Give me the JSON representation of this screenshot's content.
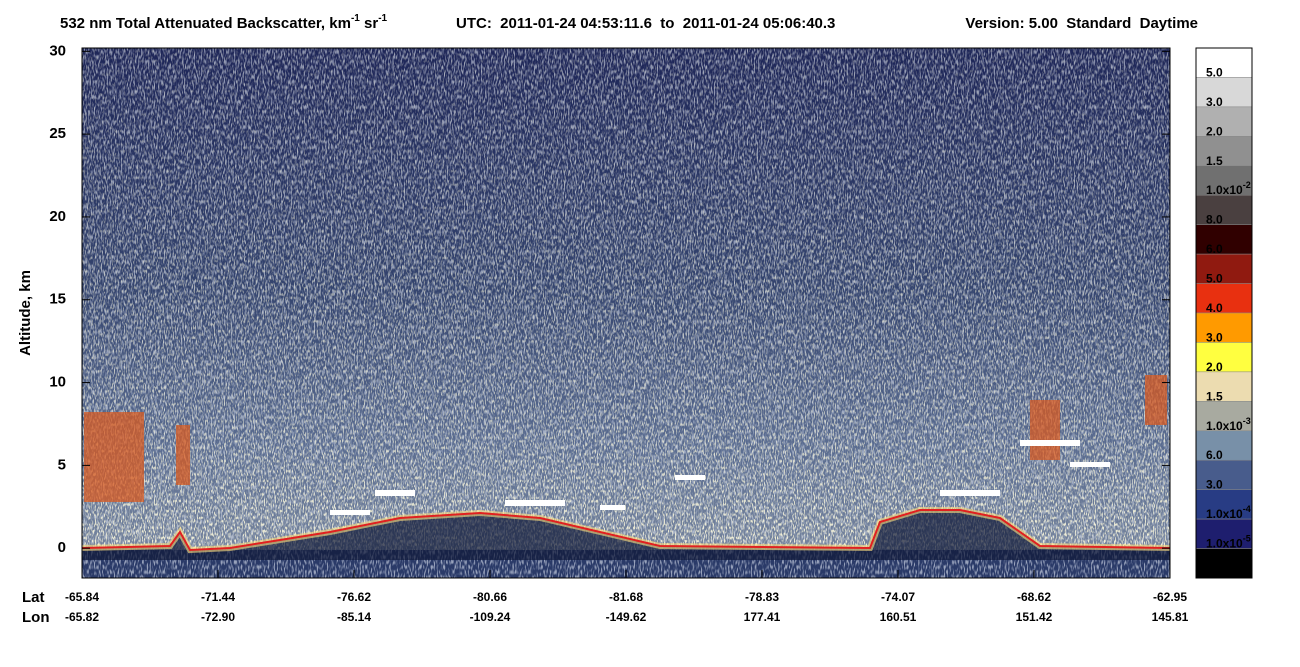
{
  "chart_data": {
    "type": "curtain",
    "title": [
      "532 nm Total Attenuated Backscatter, km",
      "-1",
      " sr",
      "-1"
    ],
    "utc": "UTC:  2011-01-24 04:53:11.6  to  2011-01-24 05:06:40.3",
    "version": "Version: 5.00  Standard  Daytime",
    "ylabel": "Altitude, km",
    "ylim": [
      -1.8,
      30.2
    ],
    "yticks": [
      0,
      5,
      10,
      15,
      20,
      25,
      30
    ],
    "xrows": [
      {
        "name": "Lat",
        "labels": [
          "-65.84",
          "-71.44",
          "-76.62",
          "-80.66",
          "-81.68",
          "-78.83",
          "-74.07",
          "-68.62",
          "-62.95"
        ]
      },
      {
        "name": "Lon",
        "labels": [
          "-65.82",
          "-72.90",
          "-85.14",
          "-109.24",
          "-149.62",
          "177.41",
          "160.51",
          "151.42",
          "145.81"
        ]
      }
    ],
    "colorbar": {
      "colors": [
        "#ffffff",
        "#d8d8d8",
        "#b0b0b0",
        "#909090",
        "#707070",
        "#4a4040",
        "#300000",
        "#901a10",
        "#e83010",
        "#ff9a00",
        "#ffff40",
        "#ecdcb0",
        "#a8aaa0",
        "#7890a8",
        "#485c8c",
        "#283c84",
        "#1e1e6e",
        "#000000"
      ],
      "labels": [
        {
          "base": "5.0"
        },
        {
          "base": "3.0"
        },
        {
          "base": "2.0"
        },
        {
          "base": "1.5"
        },
        {
          "base": "1.0x10",
          "exp": "-2"
        },
        {
          "base": "8.0"
        },
        {
          "base": "6.0"
        },
        {
          "base": "5.0"
        },
        {
          "base": "4.0"
        },
        {
          "base": "3.0"
        },
        {
          "base": "2.0"
        },
        {
          "base": "1.5"
        },
        {
          "base": "1.0x10",
          "exp": "-3"
        },
        {
          "base": "6.0"
        },
        {
          "base": "3.0"
        },
        {
          "base": "1.0x10",
          "exp": "-4"
        },
        {
          "base": "1.0x10",
          "exp": "-5"
        }
      ]
    }
  }
}
